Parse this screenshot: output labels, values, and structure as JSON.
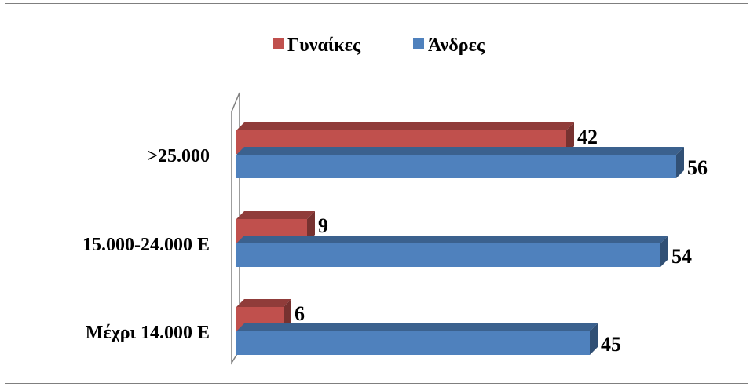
{
  "chart_data": {
    "type": "bar",
    "orientation": "horizontal",
    "style": "3d",
    "categories": [
      "Μέχρι 14.000 Ε",
      "15.000-24.000 Ε",
      ">25.000"
    ],
    "series": [
      {
        "name": "Γυναίκες",
        "values": [
          6,
          9,
          42
        ],
        "color": "#c0504d"
      },
      {
        "name": "Άνδρες",
        "values": [
          45,
          54,
          56
        ],
        "color": "#4f81bd"
      }
    ],
    "legend_position": "top",
    "grid": false,
    "value_axis_visible": false,
    "data_labels": true
  }
}
